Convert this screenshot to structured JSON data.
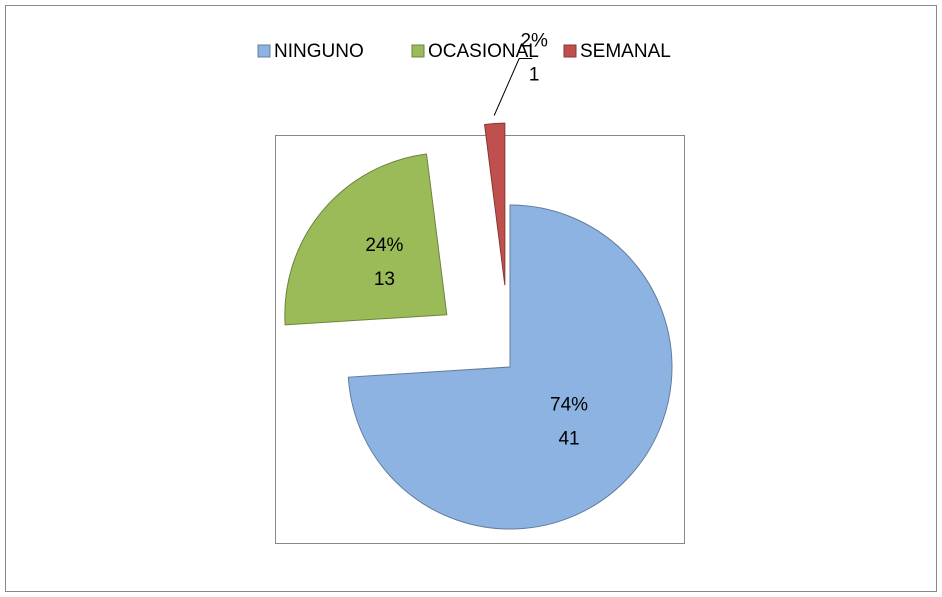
{
  "chart_data": {
    "type": "pie",
    "categories": [
      "NINGUNO",
      "OCASIONAL",
      "SEMANAL"
    ],
    "values": [
      74,
      24,
      2
    ],
    "value_labels": [
      "74%",
      "24%",
      "2%"
    ],
    "counts": [
      41,
      13,
      1
    ],
    "colors": [
      "#8db3e2",
      "#9bbb59",
      "#c0504d"
    ],
    "legend": "top"
  }
}
